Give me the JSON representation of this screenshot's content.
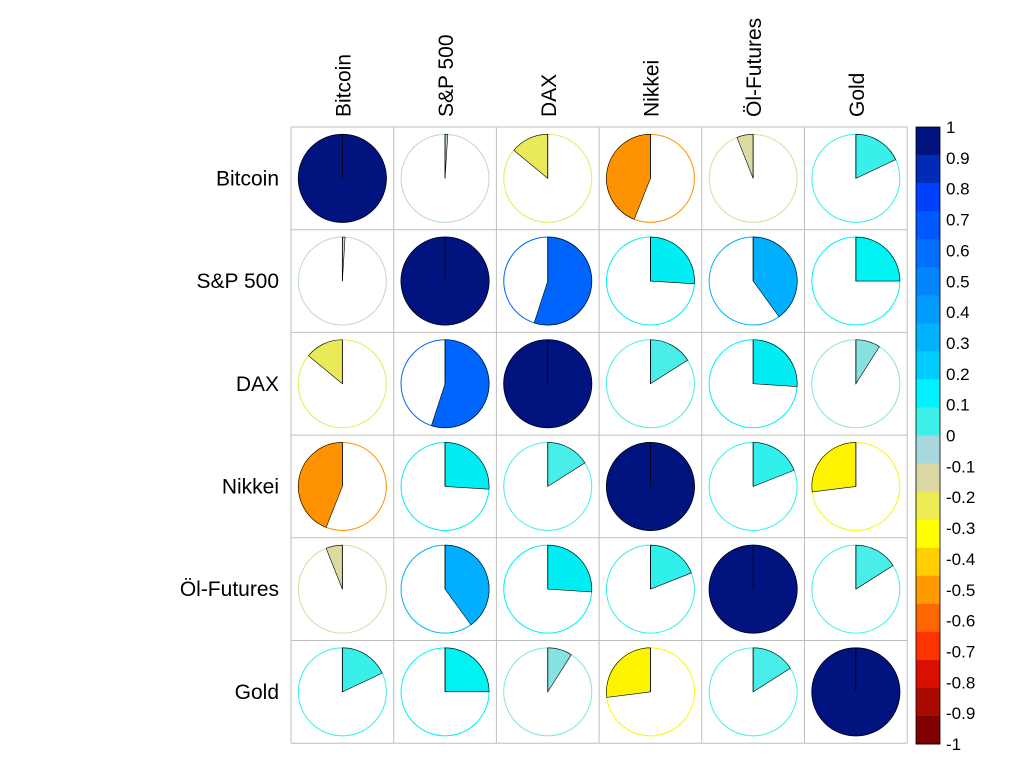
{
  "chart_data": {
    "type": "heatmap",
    "style": "pie",
    "variables": [
      "Bitcoin",
      "S&P 500",
      "DAX",
      "Nikkei",
      "Öl-Futures",
      "Gold"
    ],
    "matrix": [
      [
        1.0,
        0.01,
        -0.14,
        -0.44,
        -0.06,
        0.18
      ],
      [
        0.01,
        1.0,
        0.55,
        0.26,
        0.4,
        0.25
      ],
      [
        -0.14,
        0.55,
        1.0,
        0.16,
        0.26,
        0.09
      ],
      [
        -0.44,
        0.26,
        0.16,
        1.0,
        0.19,
        -0.27
      ],
      [
        -0.06,
        0.4,
        0.26,
        0.19,
        1.0,
        0.16
      ],
      [
        0.18,
        0.25,
        0.09,
        -0.27,
        0.16,
        1.0
      ]
    ],
    "colorbar": {
      "ticks": [
        "1",
        "0.9",
        "0.8",
        "0.7",
        "0.6",
        "0.5",
        "0.4",
        "0.3",
        "0.2",
        "0.1",
        "0",
        "-0.1",
        "-0.2",
        "-0.3",
        "-0.4",
        "-0.5",
        "-0.6",
        "-0.7",
        "-0.8",
        "-0.9",
        "-1"
      ],
      "colors_top_to_bottom": [
        "#00137F",
        "#002BB6",
        "#0041FF",
        "#0058FF",
        "#006EFF",
        "#0085FF",
        "#009BFF",
        "#00B2FF",
        "#00CDFF",
        "#00F2FF",
        "#3CF0E8",
        "#A8D8DE",
        "#DCD8A6",
        "#EEEC55",
        "#FFFF00",
        "#FFCF00",
        "#FF9B00",
        "#FF6600",
        "#FF3300",
        "#D91000",
        "#A80A00",
        "#7F0000"
      ],
      "range": [
        -1,
        1
      ]
    }
  }
}
